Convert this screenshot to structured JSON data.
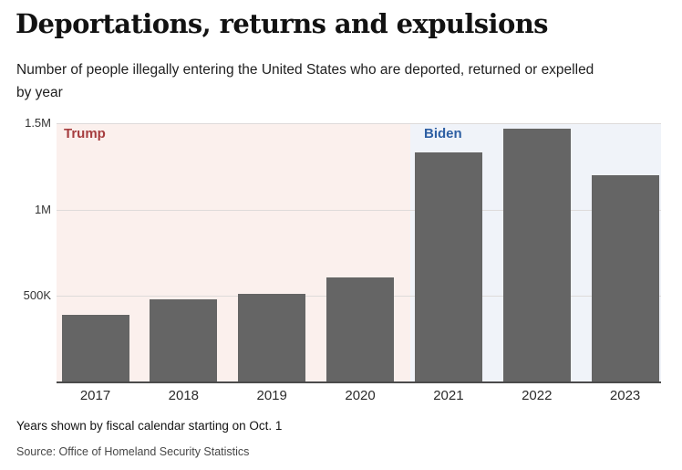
{
  "page": {
    "title": "Deportations, returns and expulsions",
    "subtitle": "Number of people illegally entering the United States who are deported, returned or expelled by year",
    "footnote": "Years shown by fiscal calendar starting on Oct. 1",
    "source": "Source: Office of Homeland Security Statistics"
  },
  "chart_data": {
    "type": "bar",
    "title": "Deportations, returns and expulsions",
    "subtitle": "Number of people illegally entering the United States who are deported, returned or expelled by year",
    "categories": [
      "2017",
      "2018",
      "2019",
      "2020",
      "2021",
      "2022",
      "2023"
    ],
    "values": [
      390000,
      480000,
      510000,
      610000,
      1330000,
      1470000,
      1200000
    ],
    "xlabel": "",
    "ylabel": "",
    "ylim": [
      0,
      1500000
    ],
    "yticks": [
      {
        "value": 500000,
        "label": "500K"
      },
      {
        "value": 1000000,
        "label": "1M"
      },
      {
        "value": 1500000,
        "label": "1.5M"
      }
    ],
    "grid": "horizontal",
    "legend_position": "none",
    "bar_color": "#656565",
    "gridline_color": "#dedbda",
    "eras": [
      {
        "label": "Trump",
        "text_color": "#a63d3f",
        "background": "#fbf0ed",
        "categories": [
          "2017",
          "2018",
          "2019",
          "2020"
        ]
      },
      {
        "label": "Biden",
        "text_color": "#2e5fa3",
        "background": "#f0f3f9",
        "categories": [
          "2021",
          "2022",
          "2023"
        ]
      }
    ],
    "footnote": "Years shown by fiscal calendar starting on Oct. 1",
    "source": "Source: Office of Homeland Security Statistics"
  }
}
